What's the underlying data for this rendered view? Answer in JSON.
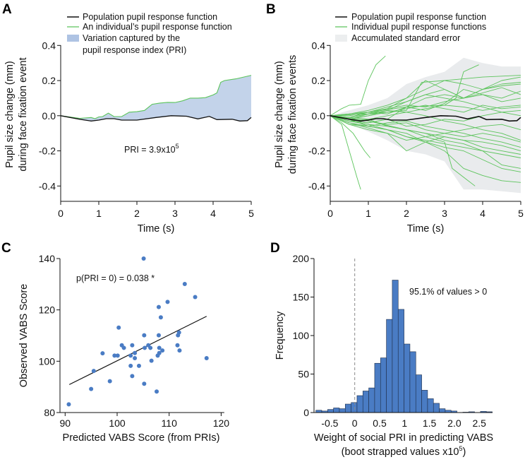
{
  "colors": {
    "population": "#111111",
    "individual": "#5cc45c",
    "pri_fill": "#c3d3ea",
    "se_band": "#e9ebed",
    "scatter": "#4a7cc4",
    "bar": "#4a7cc4",
    "bar_edge": "#1f2f4a",
    "dash": "#888888"
  },
  "chart_data": [
    {
      "panel": "A",
      "type": "area",
      "xlabel": "Time (s)",
      "ylabel": [
        "Pupil size change (mm)",
        "during face fixation event"
      ],
      "xlim": [
        0,
        5
      ],
      "ylim": [
        -0.48,
        0.4
      ],
      "xticks": [
        "0",
        "1",
        "2",
        "3",
        "4",
        "5"
      ],
      "yticks": [
        {
          "v": 0.4,
          "label": "0.4"
        },
        {
          "v": 0.2,
          "label": "0.2"
        },
        {
          "v": 0.0,
          "label": "0.0"
        },
        {
          "v": -0.2,
          "label": "-0.2"
        },
        {
          "v": -0.4,
          "label": "-0.4"
        }
      ],
      "legend": [
        "Population pupil response function",
        "An individual’s pupil response function",
        "Variation captured by the",
        "pupil response index (PRI)"
      ],
      "annotation": {
        "text": "PRI = 3.9x10",
        "sup": "5"
      },
      "population": {
        "t": [
          0,
          0.5,
          0.8,
          1.0,
          1.2,
          1.4,
          1.6,
          2.0,
          2.5,
          2.9,
          3.3,
          3.6,
          3.9,
          4.1,
          4.5,
          4.7,
          4.9,
          5.0
        ],
        "v": [
          0,
          -0.02,
          -0.03,
          -0.025,
          -0.017,
          -0.017,
          -0.025,
          -0.025,
          -0.01,
          0,
          -0.003,
          -0.018,
          -0.004,
          -0.022,
          -0.02,
          -0.03,
          -0.028,
          -0.01
        ]
      },
      "individual": {
        "t": [
          0,
          0.5,
          0.8,
          0.9,
          1.0,
          1.1,
          1.25,
          1.4,
          1.6,
          1.8,
          2.0,
          2.2,
          2.4,
          2.6,
          2.8,
          3.0,
          3.2,
          3.4,
          3.6,
          3.8,
          4.0,
          4.1,
          4.2,
          4.3,
          4.6,
          5.0
        ],
        "v": [
          0,
          -0.015,
          -0.01,
          -0.017,
          -0.007,
          -0.005,
          0.015,
          -0.005,
          -0.005,
          0.02,
          0.023,
          0.03,
          0.065,
          0.072,
          0.076,
          0.075,
          0.085,
          0.1,
          0.1,
          0.103,
          0.118,
          0.13,
          0.19,
          0.2,
          0.21,
          0.23
        ]
      }
    },
    {
      "panel": "B",
      "type": "line",
      "xlabel": "Time (s)",
      "ylabel": [
        "Pupil size change (mm)",
        "during face fixation events"
      ],
      "xlim": [
        0,
        5
      ],
      "ylim": [
        -0.48,
        0.4
      ],
      "xticks": [
        "0",
        "1",
        "2",
        "3",
        "4",
        "5"
      ],
      "yticks": [
        {
          "v": 0.4,
          "label": "0.4"
        },
        {
          "v": 0.2,
          "label": "0.2"
        },
        {
          "v": 0.0,
          "label": "0.0"
        },
        {
          "v": -0.2,
          "label": "-0.2"
        },
        {
          "v": -0.4,
          "label": "-0.4"
        }
      ],
      "legend": [
        "Population pupil response function",
        "Individual pupil response functions",
        "Accumulated standard error"
      ],
      "grid_t": [
        0,
        0.5,
        1,
        1.5,
        2,
        2.5,
        3,
        3.5,
        4,
        4.5,
        5
      ],
      "se_upper": [
        0,
        0.03,
        0.06,
        0.1,
        0.18,
        0.22,
        0.25,
        0.33,
        0.3,
        0.28,
        0.28
      ],
      "se_lower": [
        0,
        -0.05,
        -0.09,
        -0.14,
        -0.2,
        -0.22,
        -0.26,
        -0.42,
        -0.42,
        -0.43,
        -0.44
      ],
      "population": {
        "t": [
          0,
          0.5,
          0.8,
          1.0,
          1.2,
          1.4,
          1.6,
          2.0,
          2.5,
          2.9,
          3.3,
          3.6,
          3.9,
          4.1,
          4.5,
          4.7,
          4.9,
          5.0
        ],
        "v": [
          0,
          -0.02,
          -0.03,
          -0.025,
          -0.017,
          -0.017,
          -0.025,
          -0.025,
          -0.01,
          0,
          -0.003,
          -0.018,
          -0.004,
          -0.022,
          -0.02,
          -0.03,
          -0.028,
          -0.01
        ]
      },
      "individuals_custom": [
        {
          "t": [
            0,
            0.3,
            0.5,
            0.8,
            1.0,
            1.2,
            1.45
          ],
          "v": [
            0,
            0.04,
            0.06,
            0.065,
            0.2,
            0.29,
            0.34
          ]
        },
        {
          "t": [
            0,
            0.3,
            0.5,
            0.7,
            0.8
          ],
          "v": [
            0,
            -0.05,
            -0.2,
            -0.35,
            -0.42
          ]
        },
        {
          "t": [
            0,
            0.3,
            0.6,
            0.9,
            1.05
          ],
          "v": [
            0,
            -0.04,
            -0.1,
            -0.2,
            -0.24
          ]
        },
        {
          "t": [
            0,
            1,
            2,
            2.5,
            3,
            3.2,
            3.5,
            3.8
          ],
          "v": [
            0,
            -0.03,
            -0.08,
            -0.12,
            -0.15,
            -0.3,
            -0.35,
            -0.4
          ]
        },
        {
          "t": [
            0,
            1,
            2,
            3,
            3.3,
            3.5,
            3.9
          ],
          "v": [
            0,
            0.02,
            0.05,
            0.06,
            0.1,
            0.25,
            0.29
          ]
        },
        {
          "t": [
            0,
            1,
            2,
            2.4,
            3,
            4,
            5
          ],
          "v": [
            0,
            0.01,
            0.03,
            0.19,
            0.2,
            0.22,
            0.23
          ]
        }
      ],
      "individuals_grid": [
        [
          0,
          -0.02,
          0.01,
          0.04,
          0.1,
          0.2,
          0.15,
          0.1,
          0.15,
          0.2,
          0.22
        ],
        [
          0,
          -0.03,
          -0.04,
          -0.02,
          0.05,
          0.1,
          0.12,
          0.1,
          0.15,
          0.18,
          0.19
        ],
        [
          0,
          -0.05,
          -0.06,
          -0.08,
          -0.12,
          -0.15,
          -0.18,
          -0.2,
          -0.25,
          -0.3,
          -0.32
        ],
        [
          0,
          -0.03,
          -0.05,
          -0.08,
          -0.1,
          -0.15,
          -0.2,
          -0.3,
          -0.34,
          -0.37,
          -0.38
        ],
        [
          0,
          0.01,
          0.02,
          0.04,
          0.06,
          0.05,
          0.08,
          0.1,
          0.12,
          0.1,
          0.14
        ],
        [
          0,
          -0.02,
          0.0,
          0.03,
          0.02,
          0.04,
          0.06,
          0.05,
          0.03,
          0.05,
          0.06
        ],
        [
          0,
          -0.03,
          -0.05,
          -0.06,
          -0.08,
          -0.1,
          -0.12,
          -0.14,
          -0.15,
          -0.17,
          -0.2
        ],
        [
          0,
          -0.01,
          0.02,
          0.05,
          0.08,
          0.12,
          0.1,
          0.08,
          0.05,
          0.02,
          0.0
        ],
        [
          0,
          -0.04,
          -0.07,
          -0.1,
          -0.2,
          -0.15,
          -0.12,
          -0.14,
          -0.18,
          -0.2,
          -0.22
        ],
        [
          0,
          -0.02,
          -0.03,
          -0.05,
          -0.04,
          -0.08,
          -0.1,
          -0.12,
          -0.1,
          -0.12,
          -0.15
        ],
        [
          0,
          0.0,
          0.02,
          0.01,
          0.05,
          0.03,
          0.07,
          0.15,
          0.12,
          0.08,
          0.1
        ],
        [
          0,
          -0.03,
          -0.04,
          -0.02,
          -0.06,
          -0.05,
          -0.02,
          -0.03,
          0.0,
          0.02,
          0.03
        ],
        [
          0,
          -0.02,
          -0.06,
          -0.08,
          -0.12,
          -0.14,
          -0.16,
          -0.18,
          -0.2,
          -0.22,
          -0.24
        ],
        [
          0,
          0.01,
          0.03,
          0.06,
          0.1,
          0.15,
          0.2,
          0.18,
          0.15,
          0.17,
          0.18
        ],
        [
          0,
          -0.01,
          -0.02,
          0.0,
          0.02,
          0.0,
          -0.03,
          -0.05,
          -0.08,
          -0.1,
          -0.14
        ],
        [
          0,
          -0.05,
          -0.08,
          -0.1,
          -0.14,
          -0.12,
          -0.1,
          -0.08,
          -0.06,
          -0.05,
          -0.08
        ],
        [
          0,
          -0.02,
          0.0,
          0.02,
          0.04,
          0.06,
          0.04,
          0.02,
          0.06,
          0.04,
          0.05
        ],
        [
          0,
          -0.03,
          -0.02,
          -0.06,
          -0.08,
          -0.1,
          -0.14,
          -0.16,
          -0.2,
          -0.28,
          -0.3
        ],
        [
          0,
          -0.01,
          0.01,
          0.03,
          0.08,
          0.12,
          0.15,
          0.1,
          0.13,
          0.16,
          0.12
        ],
        [
          0,
          -0.04,
          -0.06,
          -0.04,
          -0.03,
          -0.06,
          -0.08,
          -0.1,
          -0.13,
          -0.15,
          -0.18
        ]
      ]
    },
    {
      "panel": "C",
      "type": "scatter",
      "xlabel": "Predicted VABS Score (from PRIs)",
      "ylabel": "Observed VABS Score",
      "xlim": [
        88.4,
        120.6
      ],
      "ylim": [
        80,
        140
      ],
      "xticks": [
        90,
        100,
        110,
        120
      ],
      "yticks": [
        80,
        100,
        120,
        140
      ],
      "annotation": "p(PRI = 0) = 0.038 *",
      "points": [
        [
          105.1,
          140
        ],
        [
          113.0,
          130.1
        ],
        [
          115.0,
          125
        ],
        [
          109.7,
          123.1
        ],
        [
          108.0,
          121.1
        ],
        [
          108.4,
          117.1
        ],
        [
          100.3,
          113.1
        ],
        [
          105.2,
          110.1
        ],
        [
          108.0,
          110.1
        ],
        [
          111.9,
          111.2
        ],
        [
          111.7,
          110.1
        ],
        [
          100.9,
          106.2
        ],
        [
          101.3,
          105.2
        ],
        [
          102.9,
          106.2
        ],
        [
          106.0,
          106.2
        ],
        [
          105.3,
          105.2
        ],
        [
          106.4,
          105.2
        ],
        [
          108.1,
          105.2
        ],
        [
          108.7,
          104.2
        ],
        [
          111.6,
          106.2
        ],
        [
          112.0,
          104.2
        ],
        [
          97.2,
          103.1
        ],
        [
          99.5,
          102.2
        ],
        [
          100.1,
          102.2
        ],
        [
          102.6,
          102.2
        ],
        [
          103.4,
          103.2
        ],
        [
          103.4,
          101.2
        ],
        [
          108.1,
          103.2
        ],
        [
          107.8,
          102.2
        ],
        [
          106.6,
          100.2
        ],
        [
          117.2,
          101.2
        ],
        [
          95.5,
          96.2
        ],
        [
          104.2,
          98.2
        ],
        [
          102.6,
          98.2
        ],
        [
          102.9,
          94.2
        ],
        [
          98.6,
          92.2
        ],
        [
          105.2,
          91.2
        ],
        [
          107.6,
          88.2
        ],
        [
          95.0,
          89.2
        ],
        [
          90.7,
          83.2
        ]
      ],
      "fit_line": [
        [
          90.8,
          90.9
        ],
        [
          117.2,
          117.5
        ]
      ]
    },
    {
      "panel": "D",
      "type": "bar",
      "xlabel": [
        "Weight of social PRI in predicting VABS",
        "(boot strapped values x10",
        "5",
        ")"
      ],
      "ylabel": "Frequency",
      "xlim": [
        -0.81,
        2.75
      ],
      "ylim": [
        0,
        200
      ],
      "xticks": [
        {
          "v": -0.5,
          "label": "-0.5"
        },
        {
          "v": 0,
          "label": "0"
        },
        {
          "v": 0.5,
          "label": "0.5"
        },
        {
          "v": 1,
          "label": "1"
        },
        {
          "v": 1.5,
          "label": "1.5"
        },
        {
          "v": 2.0,
          "label": "2.0"
        },
        {
          "v": 2.5,
          "label": "2.5"
        }
      ],
      "yticks": [
        0,
        50,
        100,
        150,
        200
      ],
      "bin_start": -0.78,
      "bin_width": 0.118,
      "values": [
        3,
        2,
        4,
        6,
        5,
        11,
        13,
        22,
        28,
        32,
        64,
        71,
        121,
        172,
        134,
        89,
        79,
        49,
        29,
        18,
        12,
        5,
        3,
        2,
        0,
        0.5,
        1,
        0,
        1.5,
        1
      ],
      "reference_line": 0,
      "annotation": "95.1% of values > 0"
    }
  ]
}
